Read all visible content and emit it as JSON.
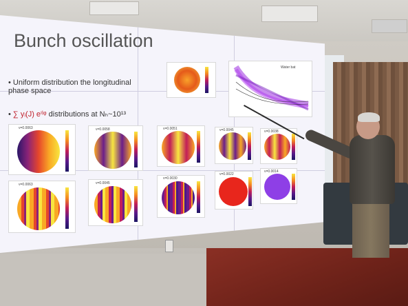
{
  "slide": {
    "title": "Bunch oscillation",
    "bullet1": "Uniform distribution the longitudinal phase space",
    "bullet2_symbol": "∑ yᵢ(J) eⁱˡᵠ",
    "bullet2_text": "distributions at Nₕ~10¹³",
    "plot_legend": "Water bat",
    "panels": [
      {
        "label": "ν=0.0063",
        "style": "dipole-yellow"
      },
      {
        "label": "ν=0.0058",
        "style": "stripes"
      },
      {
        "label": "ν=0.0051",
        "style": "stripes"
      },
      {
        "label": "ν=0.0045",
        "style": "stripes"
      },
      {
        "label": "ν=0.0038",
        "style": "stripes"
      },
      {
        "label": "ν=0.0063",
        "style": "fine-stripes"
      },
      {
        "label": "ν=0.0045",
        "style": "fine-stripes"
      },
      {
        "label": "ν=0.0030",
        "style": "fine-stripes"
      },
      {
        "label": "ν=0.0022",
        "style": "solid-red"
      },
      {
        "label": "ν=0.0014",
        "style": "solid-purple"
      }
    ]
  },
  "colors": {
    "screen": "#f5f4fb",
    "accent_red": "#c0212c",
    "desk": "#7a2a20"
  }
}
